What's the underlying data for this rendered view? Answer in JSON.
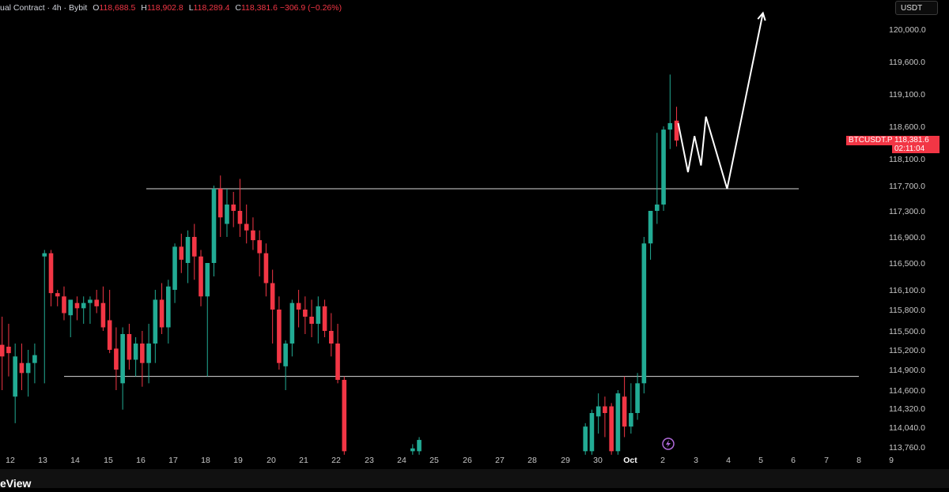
{
  "legend": {
    "title": "ual Contract · 4h · Bybit",
    "o_label": "O",
    "o_value": "118,688.5",
    "h_label": "H",
    "h_value": "118,902.8",
    "l_label": "L",
    "l_value": "118,289.4",
    "c_label": "C",
    "c_value": "118,381.6",
    "change": "−306.9 (−0.26%)"
  },
  "currency_button": "USDT",
  "price_tag": {
    "symbol": "BTCUSDT.P",
    "price": "118,381.6",
    "countdown": "02:11:04"
  },
  "footer": {
    "logo_text": "eView"
  },
  "colors": {
    "up": "#22ab94",
    "down": "#f23645",
    "bg": "#000000",
    "line": "#d9d9d9",
    "tag": "#f23645"
  },
  "icons": {
    "flash": "flash-icon"
  },
  "chart_data": {
    "type": "candlestick",
    "symbol": "BTCUSDT.P",
    "interval": "4h",
    "y_ticks": [
      120000,
      119600,
      119100,
      118600,
      118100,
      117700,
      117300,
      116900,
      116500,
      116100,
      115800,
      115500,
      115200,
      114900,
      114600,
      114320,
      114040,
      113760
    ],
    "y_tick_labels": [
      "120,000.0",
      "119,600.0",
      "119,100.0",
      "118,600.0",
      "118,100.0",
      "117,700.0",
      "117,300.0",
      "116,900.0",
      "116,500.0",
      "116,100.0",
      "115,800.0",
      "115,500.0",
      "115,200.0",
      "114,900.0",
      "114,600.0",
      "114,320.0",
      "114,040.0",
      "113,760.0"
    ],
    "x_ticks": [
      12,
      13,
      14,
      15,
      16,
      17,
      18,
      19,
      20,
      21,
      22,
      23,
      24,
      25,
      26,
      27,
      28,
      29,
      30,
      "Oct",
      2,
      3,
      4,
      5,
      6,
      7,
      8,
      9
    ],
    "x_tick_labels": [
      "12",
      "13",
      "14",
      "15",
      "16",
      "17",
      "18",
      "19",
      "20",
      "21",
      "22",
      "23",
      "24",
      "25",
      "26",
      "27",
      "28",
      "29",
      "30",
      "Oct",
      "2",
      "3",
      "4",
      "5",
      "6",
      "7",
      "8",
      "9"
    ],
    "horizontal_lines": [
      117650,
      114800
    ],
    "projection_path": [
      [
        2.5,
        118650
      ],
      [
        2.8,
        117900
      ],
      [
        3.0,
        118450
      ],
      [
        3.2,
        118000
      ],
      [
        3.35,
        118750
      ],
      [
        4.0,
        117650
      ],
      [
        5.1,
        120200
      ]
    ],
    "candles": [
      [
        11.75,
        115280,
        115700,
        114600,
        115100
      ],
      [
        11.95,
        115250,
        115600,
        114800,
        115150
      ],
      [
        12.15,
        114500,
        115300,
        114100,
        115100
      ],
      [
        12.35,
        115000,
        115300,
        114600,
        114850
      ],
      [
        12.55,
        114850,
        115200,
        114500,
        115000
      ],
      [
        12.75,
        115000,
        115300,
        114700,
        115120
      ],
      [
        13.05,
        116600,
        116700,
        114700,
        116650
      ],
      [
        13.25,
        116650,
        116700,
        115850,
        116050
      ],
      [
        13.45,
        116050,
        116100,
        115850,
        116000
      ],
      [
        13.65,
        116000,
        116150,
        115650,
        115750
      ],
      [
        13.85,
        115720,
        115950,
        115400,
        115950
      ],
      [
        14.05,
        115900,
        116000,
        115650,
        115820
      ],
      [
        14.25,
        115820,
        116000,
        115600,
        115900
      ],
      [
        14.45,
        115900,
        116000,
        115600,
        115950
      ],
      [
        14.65,
        115950,
        116100,
        115750,
        115850
      ],
      [
        14.85,
        115900,
        116150,
        115500,
        115550
      ],
      [
        15.05,
        115650,
        116100,
        115150,
        115200
      ],
      [
        15.25,
        115220,
        115550,
        114600,
        114900
      ],
      [
        15.45,
        114700,
        115550,
        114300,
        115450
      ],
      [
        15.65,
        115450,
        115600,
        114900,
        115050
      ],
      [
        15.85,
        115050,
        115400,
        114800,
        115300
      ],
      [
        16.05,
        115300,
        115500,
        114650,
        115000
      ],
      [
        16.25,
        115000,
        115600,
        114700,
        115300
      ],
      [
        16.45,
        115300,
        116100,
        115000,
        115950
      ],
      [
        16.65,
        115950,
        116200,
        115450,
        115550
      ],
      [
        16.85,
        115550,
        116250,
        115300,
        116150
      ],
      [
        17.05,
        116100,
        116800,
        115900,
        116750
      ],
      [
        17.25,
        116750,
        116950,
        116350,
        116550
      ],
      [
        17.45,
        116500,
        117000,
        116200,
        116900
      ],
      [
        17.65,
        116900,
        117100,
        116250,
        116600
      ],
      [
        17.85,
        116600,
        116700,
        115850,
        116000
      ],
      [
        18.05,
        116000,
        116500,
        114800,
        116500
      ],
      [
        18.25,
        116500,
        117700,
        116300,
        117650
      ],
      [
        18.45,
        117650,
        117850,
        116900,
        117200
      ],
      [
        18.65,
        117100,
        117650,
        116900,
        117400
      ],
      [
        18.85,
        117400,
        117600,
        117050,
        117300
      ],
      [
        19.05,
        117300,
        117800,
        116900,
        117100
      ],
      [
        19.25,
        117100,
        117400,
        116800,
        117000
      ],
      [
        19.45,
        117000,
        117200,
        116700,
        116850
      ],
      [
        19.65,
        116850,
        117000,
        116300,
        116650
      ],
      [
        19.85,
        116650,
        116800,
        116000,
        116200
      ],
      [
        20.05,
        116200,
        116400,
        115300,
        115800
      ],
      [
        20.25,
        115800,
        116000,
        114900,
        115000
      ],
      [
        20.45,
        114950,
        115350,
        114600,
        115300
      ],
      [
        20.65,
        115300,
        115950,
        115100,
        115900
      ],
      [
        20.85,
        115900,
        116100,
        115550,
        115800
      ],
      [
        21.05,
        115800,
        116000,
        115450,
        115700
      ],
      [
        21.25,
        115700,
        115950,
        115400,
        115600
      ],
      [
        21.45,
        115600,
        116000,
        115300,
        115850
      ],
      [
        21.65,
        115850,
        115950,
        115400,
        115500
      ],
      [
        21.85,
        115500,
        115750,
        115100,
        115300
      ],
      [
        22.05,
        115300,
        115600,
        114700,
        114750
      ],
      [
        22.25,
        114750,
        114800,
        113650,
        113700
      ],
      [
        24.35,
        113700,
        113800,
        113650,
        113740
      ],
      [
        24.55,
        113700,
        113900,
        113650,
        113860
      ],
      [
        29.65,
        113700,
        114100,
        113650,
        114050
      ],
      [
        29.85,
        113700,
        114300,
        113650,
        114250
      ],
      [
        30.05,
        114200,
        114550,
        113950,
        114350
      ],
      [
        30.25,
        114350,
        114500,
        113900,
        114250
      ],
      [
        30.45,
        114350,
        114400,
        113650,
        113700
      ],
      [
        30.65,
        113700,
        114600,
        113650,
        114550
      ],
      [
        30.85,
        114500,
        114800,
        113900,
        114050
      ],
      [
        31.05,
        114050,
        114700,
        113950,
        114250
      ],
      [
        31.25,
        114250,
        114850,
        114150,
        114700
      ],
      [
        31.45,
        114700,
        116900,
        114550,
        116800
      ],
      [
        31.65,
        116800,
        117300,
        116550,
        117300
      ],
      [
        31.85,
        117300,
        118500,
        117100,
        117400
      ],
      [
        32.05,
        117400,
        118600,
        117300,
        118550
      ],
      [
        32.25,
        118550,
        119400,
        118250,
        118650
      ],
      [
        32.45,
        118688.5,
        118902.8,
        118289.4,
        118381.6
      ]
    ]
  }
}
